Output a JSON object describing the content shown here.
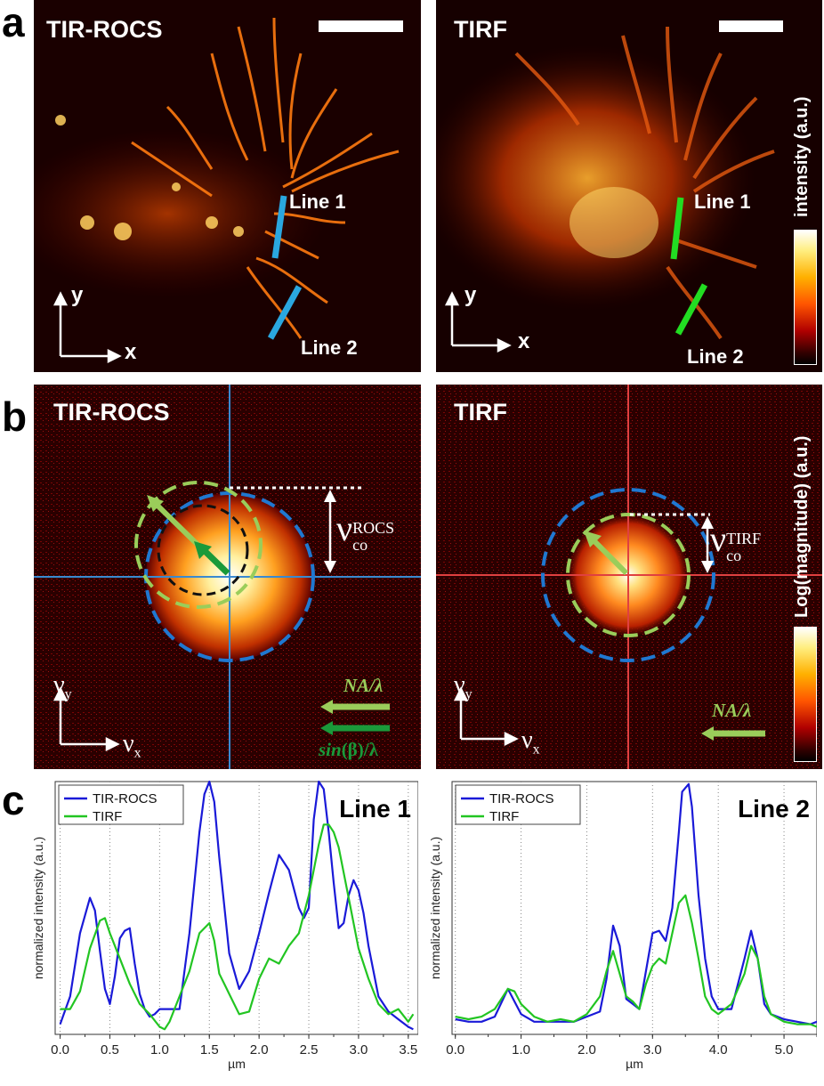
{
  "panel_labels": {
    "a": "a",
    "b": "b",
    "c": "c"
  },
  "row_a": {
    "left": {
      "title": "TIR-ROCS",
      "line1": "Line 1",
      "line2": "Line 2",
      "axis_x": "x",
      "axis_y": "y"
    },
    "right": {
      "title": "TIRF",
      "line1": "Line 1",
      "line2": "Line 2",
      "axis_x": "x",
      "axis_y": "y"
    },
    "colorbar_label": "intensity (a.u.)",
    "line_colors": {
      "left": "#2aa7e0",
      "right": "#22dd22"
    }
  },
  "row_b": {
    "left": {
      "title": "TIR-ROCS",
      "vco": "ν",
      "vco_sub": "co",
      "vco_sup": "ROCS",
      "na_label": "NA/λ",
      "sin_label_pre": "sin",
      "sin_label_post": "(β)/λ",
      "axis_x": "ν",
      "axis_x_sub": "x",
      "axis_y": "ν",
      "axis_y_sub": "y"
    },
    "right": {
      "title": "TIRF",
      "vco": "ν",
      "vco_sub": "co",
      "vco_sup": "TIRF",
      "na_label": "NA/λ",
      "axis_x": "ν",
      "axis_x_sub": "x",
      "axis_y": "ν",
      "axis_y_sub": "y"
    },
    "colorbar_label": "Log(magnitude) (a.u.)",
    "colors": {
      "blue_circle": "#1f78d1",
      "green_circle": "#9acd5a",
      "dark_green": "#1a9a3a",
      "light_green": "#9acd5a"
    }
  },
  "chart_data": [
    {
      "type": "line",
      "title": "Line 1",
      "xlabel": "µm",
      "ylabel": "normalized intensity (a.u.)",
      "xlim": [
        -0.05,
        3.6
      ],
      "ylim": [
        0,
        1.0
      ],
      "xticks": [
        "0.0",
        "0.5",
        "1.0",
        "1.5",
        "2.0",
        "2.5",
        "3.0",
        "3.5"
      ],
      "xtick_values": [
        0.0,
        0.5,
        1.0,
        1.5,
        2.0,
        2.5,
        3.0,
        3.5
      ],
      "series": [
        {
          "name": "TIR-ROCS",
          "color": "#1a1ad8",
          "x": [
            0.0,
            0.1,
            0.2,
            0.3,
            0.35,
            0.4,
            0.45,
            0.5,
            0.55,
            0.6,
            0.65,
            0.7,
            0.75,
            0.8,
            0.85,
            0.9,
            0.95,
            1.0,
            1.1,
            1.2,
            1.3,
            1.4,
            1.45,
            1.5,
            1.55,
            1.6,
            1.7,
            1.8,
            1.9,
            2.0,
            2.1,
            2.2,
            2.3,
            2.4,
            2.45,
            2.5,
            2.55,
            2.6,
            2.65,
            2.7,
            2.75,
            2.8,
            2.85,
            2.9,
            2.95,
            3.0,
            3.05,
            3.1,
            3.2,
            3.3,
            3.4,
            3.5,
            3.55
          ],
          "y": [
            0.04,
            0.15,
            0.4,
            0.54,
            0.49,
            0.33,
            0.18,
            0.12,
            0.23,
            0.38,
            0.41,
            0.42,
            0.28,
            0.16,
            0.1,
            0.07,
            0.08,
            0.1,
            0.1,
            0.1,
            0.4,
            0.8,
            0.95,
            1.0,
            0.92,
            0.7,
            0.32,
            0.18,
            0.25,
            0.4,
            0.56,
            0.71,
            0.65,
            0.5,
            0.46,
            0.5,
            0.85,
            1.0,
            0.97,
            0.8,
            0.6,
            0.42,
            0.44,
            0.55,
            0.61,
            0.57,
            0.48,
            0.35,
            0.15,
            0.09,
            0.06,
            0.03,
            0.02
          ]
        },
        {
          "name": "TIRF",
          "color": "#22c522",
          "x": [
            0.0,
            0.1,
            0.2,
            0.3,
            0.4,
            0.45,
            0.5,
            0.6,
            0.7,
            0.8,
            0.9,
            1.0,
            1.05,
            1.1,
            1.2,
            1.3,
            1.4,
            1.5,
            1.55,
            1.6,
            1.7,
            1.8,
            1.9,
            2.0,
            2.1,
            2.2,
            2.3,
            2.4,
            2.5,
            2.6,
            2.65,
            2.7,
            2.75,
            2.8,
            2.9,
            3.0,
            3.1,
            3.2,
            3.3,
            3.4,
            3.5,
            3.55
          ],
          "y": [
            0.1,
            0.1,
            0.17,
            0.34,
            0.45,
            0.46,
            0.4,
            0.3,
            0.2,
            0.12,
            0.08,
            0.03,
            0.02,
            0.05,
            0.15,
            0.25,
            0.4,
            0.44,
            0.37,
            0.24,
            0.16,
            0.08,
            0.09,
            0.22,
            0.3,
            0.28,
            0.35,
            0.4,
            0.55,
            0.75,
            0.83,
            0.83,
            0.8,
            0.74,
            0.54,
            0.34,
            0.22,
            0.12,
            0.08,
            0.1,
            0.05,
            0.08
          ]
        }
      ]
    },
    {
      "type": "line",
      "title": "Line 2",
      "xlabel": "µm",
      "ylabel": "normalized intensity (a.u.)",
      "xlim": [
        -0.05,
        5.5
      ],
      "ylim": [
        0,
        1.0
      ],
      "xticks": [
        "0.0",
        "1.0",
        "2.0",
        "3.0",
        "4.0",
        "5.0"
      ],
      "xtick_values": [
        0.0,
        1.0,
        2.0,
        3.0,
        4.0,
        5.0
      ],
      "series": [
        {
          "name": "TIR-ROCS",
          "color": "#1a1ad8",
          "x": [
            0.0,
            0.2,
            0.4,
            0.6,
            0.8,
            0.9,
            1.0,
            1.2,
            1.4,
            1.6,
            1.8,
            2.0,
            2.2,
            2.3,
            2.4,
            2.5,
            2.6,
            2.7,
            2.8,
            2.9,
            3.0,
            3.1,
            3.2,
            3.3,
            3.4,
            3.45,
            3.55,
            3.6,
            3.7,
            3.8,
            3.9,
            4.0,
            4.2,
            4.4,
            4.5,
            4.6,
            4.7,
            4.8,
            5.0,
            5.2,
            5.4,
            5.5
          ],
          "y": [
            0.06,
            0.05,
            0.05,
            0.07,
            0.18,
            0.13,
            0.08,
            0.05,
            0.05,
            0.05,
            0.05,
            0.07,
            0.09,
            0.22,
            0.43,
            0.35,
            0.14,
            0.12,
            0.1,
            0.25,
            0.4,
            0.41,
            0.37,
            0.5,
            0.8,
            0.96,
            0.99,
            0.9,
            0.55,
            0.3,
            0.15,
            0.1,
            0.1,
            0.3,
            0.41,
            0.3,
            0.12,
            0.08,
            0.06,
            0.05,
            0.04,
            0.05
          ]
        },
        {
          "name": "TIRF",
          "color": "#22c522",
          "x": [
            0.0,
            0.2,
            0.4,
            0.6,
            0.8,
            0.9,
            1.0,
            1.2,
            1.4,
            1.6,
            1.8,
            2.0,
            2.2,
            2.3,
            2.4,
            2.5,
            2.6,
            2.7,
            2.8,
            2.9,
            3.0,
            3.1,
            3.2,
            3.3,
            3.4,
            3.5,
            3.6,
            3.7,
            3.8,
            3.9,
            4.0,
            4.2,
            4.4,
            4.5,
            4.6,
            4.7,
            4.8,
            5.0,
            5.2,
            5.4,
            5.5
          ],
          "y": [
            0.07,
            0.06,
            0.07,
            0.1,
            0.18,
            0.17,
            0.12,
            0.07,
            0.05,
            0.06,
            0.05,
            0.08,
            0.15,
            0.25,
            0.33,
            0.24,
            0.15,
            0.13,
            0.1,
            0.2,
            0.27,
            0.3,
            0.28,
            0.4,
            0.52,
            0.55,
            0.44,
            0.3,
            0.15,
            0.1,
            0.08,
            0.12,
            0.24,
            0.35,
            0.3,
            0.15,
            0.08,
            0.05,
            0.04,
            0.04,
            0.03
          ]
        }
      ]
    }
  ]
}
